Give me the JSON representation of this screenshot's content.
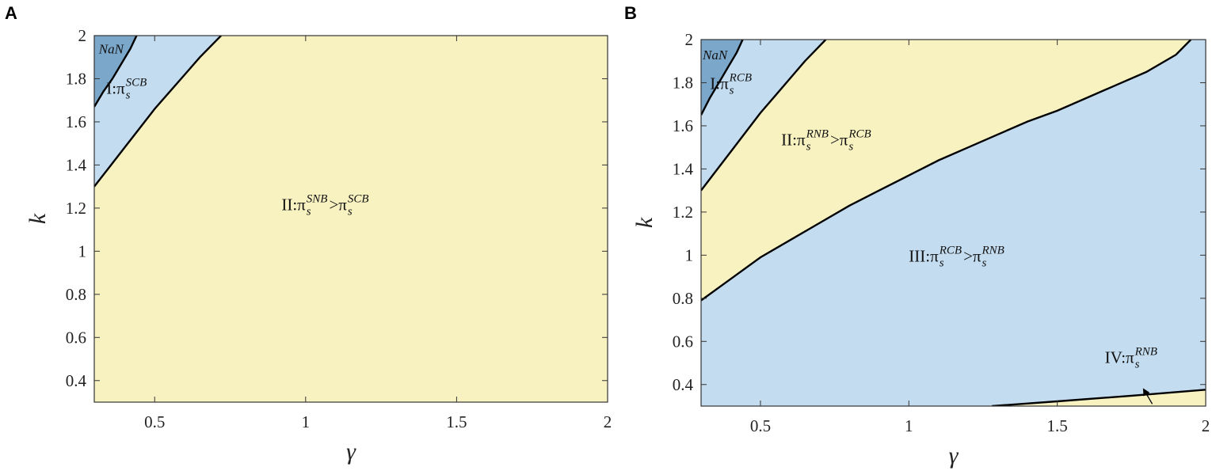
{
  "colors": {
    "yellow": "#f8f2c1",
    "light_blue": "#c3dcf0",
    "dark_blue": "#7ba7cb",
    "line": "#000000"
  },
  "chart_data": [
    {
      "type": "area",
      "panel_label": "A",
      "xlabel": "γ",
      "ylabel": "k",
      "xlim": [
        0.3,
        2
      ],
      "ylim": [
        0.3,
        2
      ],
      "xticks": [
        0.5,
        1,
        1.5,
        2
      ],
      "xtick_labels": [
        "0.5",
        "1",
        "1.5",
        "2"
      ],
      "yticks": [
        0.4,
        0.6,
        0.8,
        1,
        1.2,
        1.4,
        1.6,
        1.8,
        2
      ],
      "ytick_labels": [
        "0.4",
        "0.6",
        "0.8",
        "1",
        "1.2",
        "1.4",
        "1.6",
        "1.8",
        "2"
      ],
      "grid": false,
      "background_color": "yellow",
      "boundaries": [
        {
          "x": [
            0.3,
            0.33,
            0.36,
            0.39,
            0.42,
            0.44
          ],
          "y": [
            1.67,
            1.74,
            1.8,
            1.87,
            1.94,
            2.0
          ]
        },
        {
          "x": [
            0.3,
            0.35,
            0.4,
            0.45,
            0.5,
            0.55,
            0.6,
            0.65,
            0.72
          ],
          "y": [
            1.3,
            1.39,
            1.48,
            1.57,
            1.66,
            1.74,
            1.82,
            1.9,
            2.0
          ]
        }
      ],
      "regions": [
        {
          "color": "dark_blue",
          "polygon": [
            [
              0.3,
              1.67
            ],
            [
              0.33,
              1.74
            ],
            [
              0.36,
              1.8
            ],
            [
              0.39,
              1.87
            ],
            [
              0.42,
              1.94
            ],
            [
              0.44,
              2.0
            ],
            [
              0.3,
              2.0
            ]
          ]
        },
        {
          "color": "light_blue",
          "polygon": [
            [
              0.3,
              1.3
            ],
            [
              0.35,
              1.39
            ],
            [
              0.4,
              1.48
            ],
            [
              0.45,
              1.57
            ],
            [
              0.5,
              1.66
            ],
            [
              0.55,
              1.74
            ],
            [
              0.6,
              1.82
            ],
            [
              0.65,
              1.9
            ],
            [
              0.72,
              2.0
            ],
            [
              0.44,
              2.0
            ],
            [
              0.42,
              1.94
            ],
            [
              0.39,
              1.87
            ],
            [
              0.36,
              1.8
            ],
            [
              0.33,
              1.74
            ],
            [
              0.3,
              1.67
            ]
          ]
        }
      ],
      "annotations": [
        {
          "kind": "nan",
          "text": "NaN",
          "x": 0.31,
          "y": 1.94
        },
        {
          "kind": "label",
          "prefix": "I: ",
          "terms": [
            {
              "base": "π",
              "sup": "SCB",
              "sub": "s"
            }
          ],
          "relation": "",
          "x": 0.34,
          "y": 1.73
        },
        {
          "kind": "label",
          "prefix": "II: ",
          "terms": [
            {
              "base": "π",
              "sup": "SNB",
              "sub": "s"
            },
            {
              "base": "π",
              "sup": "SCB",
              "sub": "s"
            }
          ],
          "relation": " > ",
          "x": 0.92,
          "y": 1.19
        }
      ]
    },
    {
      "type": "area",
      "panel_label": "B",
      "xlabel": "γ",
      "ylabel": "k",
      "xlim": [
        0.3,
        2
      ],
      "ylim": [
        0.3,
        2
      ],
      "xticks": [
        0.5,
        1,
        1.5,
        2
      ],
      "xtick_labels": [
        "0.5",
        "1",
        "1.5",
        "2"
      ],
      "yticks": [
        0.4,
        0.6,
        0.8,
        1,
        1.2,
        1.4,
        1.6,
        1.8,
        2
      ],
      "ytick_labels": [
        "0.4",
        "0.6",
        "0.8",
        "1",
        "1.2",
        "1.4",
        "1.6",
        "1.8",
        "2"
      ],
      "grid": false,
      "background_color": "light_blue",
      "boundaries": [
        {
          "x": [
            0.3,
            0.33,
            0.36,
            0.39,
            0.42,
            0.44
          ],
          "y": [
            1.65,
            1.73,
            1.8,
            1.87,
            1.94,
            2.0
          ]
        },
        {
          "x": [
            0.3,
            0.35,
            0.4,
            0.45,
            0.5,
            0.55,
            0.6,
            0.65,
            0.72
          ],
          "y": [
            1.3,
            1.39,
            1.48,
            1.57,
            1.66,
            1.74,
            1.82,
            1.9,
            2.0
          ]
        },
        {
          "x": [
            0.3,
            0.4,
            0.5,
            0.6,
            0.7,
            0.8,
            0.9,
            1.0,
            1.1,
            1.2,
            1.3,
            1.4,
            1.5,
            1.6,
            1.7,
            1.8,
            1.9,
            1.95
          ],
          "y": [
            0.79,
            0.89,
            0.99,
            1.07,
            1.15,
            1.23,
            1.3,
            1.37,
            1.44,
            1.5,
            1.56,
            1.62,
            1.67,
            1.73,
            1.79,
            1.85,
            1.93,
            2.0
          ]
        },
        {
          "x": [
            1.28,
            1.5,
            1.75,
            2.0
          ],
          "y": [
            0.3,
            0.322,
            0.348,
            0.376
          ]
        }
      ],
      "regions": [
        {
          "color": "yellow",
          "polygon": [
            [
              0.3,
              0.79
            ],
            [
              0.4,
              0.89
            ],
            [
              0.5,
              0.99
            ],
            [
              0.6,
              1.07
            ],
            [
              0.7,
              1.15
            ],
            [
              0.8,
              1.23
            ],
            [
              0.9,
              1.3
            ],
            [
              1.0,
              1.37
            ],
            [
              1.1,
              1.44
            ],
            [
              1.2,
              1.5
            ],
            [
              1.3,
              1.56
            ],
            [
              1.4,
              1.62
            ],
            [
              1.5,
              1.67
            ],
            [
              1.6,
              1.73
            ],
            [
              1.7,
              1.79
            ],
            [
              1.8,
              1.85
            ],
            [
              1.9,
              1.93
            ],
            [
              1.95,
              2.0
            ],
            [
              0.72,
              2.0
            ],
            [
              0.65,
              1.9
            ],
            [
              0.6,
              1.82
            ],
            [
              0.55,
              1.74
            ],
            [
              0.5,
              1.66
            ],
            [
              0.45,
              1.57
            ],
            [
              0.4,
              1.48
            ],
            [
              0.35,
              1.39
            ],
            [
              0.3,
              1.3
            ]
          ]
        },
        {
          "color": "dark_blue",
          "polygon": [
            [
              0.3,
              1.65
            ],
            [
              0.33,
              1.73
            ],
            [
              0.36,
              1.8
            ],
            [
              0.39,
              1.87
            ],
            [
              0.42,
              1.94
            ],
            [
              0.44,
              2.0
            ],
            [
              0.3,
              2.0
            ]
          ]
        },
        {
          "color": "yellow",
          "polygon": [
            [
              1.28,
              0.3
            ],
            [
              1.5,
              0.322
            ],
            [
              1.75,
              0.348
            ],
            [
              2.0,
              0.376
            ],
            [
              2.0,
              0.3
            ]
          ]
        }
      ],
      "annotations": [
        {
          "kind": "nan",
          "text": "NaN",
          "x": 0.3,
          "y": 1.93
        },
        {
          "kind": "label",
          "prefix": "I: ",
          "terms": [
            {
              "base": "π",
              "sup": "RCB",
              "sub": "s"
            }
          ],
          "relation": "",
          "x": 0.33,
          "y": 1.77
        },
        {
          "kind": "label",
          "prefix": "II: ",
          "terms": [
            {
              "base": "π",
              "sup": "RNB",
              "sub": "s"
            },
            {
              "base": "π",
              "sup": "RCB",
              "sub": "s"
            }
          ],
          "relation": " > ",
          "x": 0.57,
          "y": 1.51
        },
        {
          "kind": "label",
          "prefix": "III: ",
          "terms": [
            {
              "base": "π",
              "sup": "RCB",
              "sub": "s"
            },
            {
              "base": "π",
              "sup": "RNB",
              "sub": "s"
            }
          ],
          "relation": " > ",
          "x": 1.0,
          "y": 0.97
        },
        {
          "kind": "label",
          "prefix": "IV: ",
          "terms": [
            {
              "base": "π",
              "sup": "RNB",
              "sub": "s"
            }
          ],
          "relation": "",
          "x": 1.66,
          "y": 0.5
        },
        {
          "kind": "arrow",
          "from": [
            1.82,
            0.31
          ],
          "to": [
            1.79,
            0.38
          ]
        }
      ]
    }
  ]
}
